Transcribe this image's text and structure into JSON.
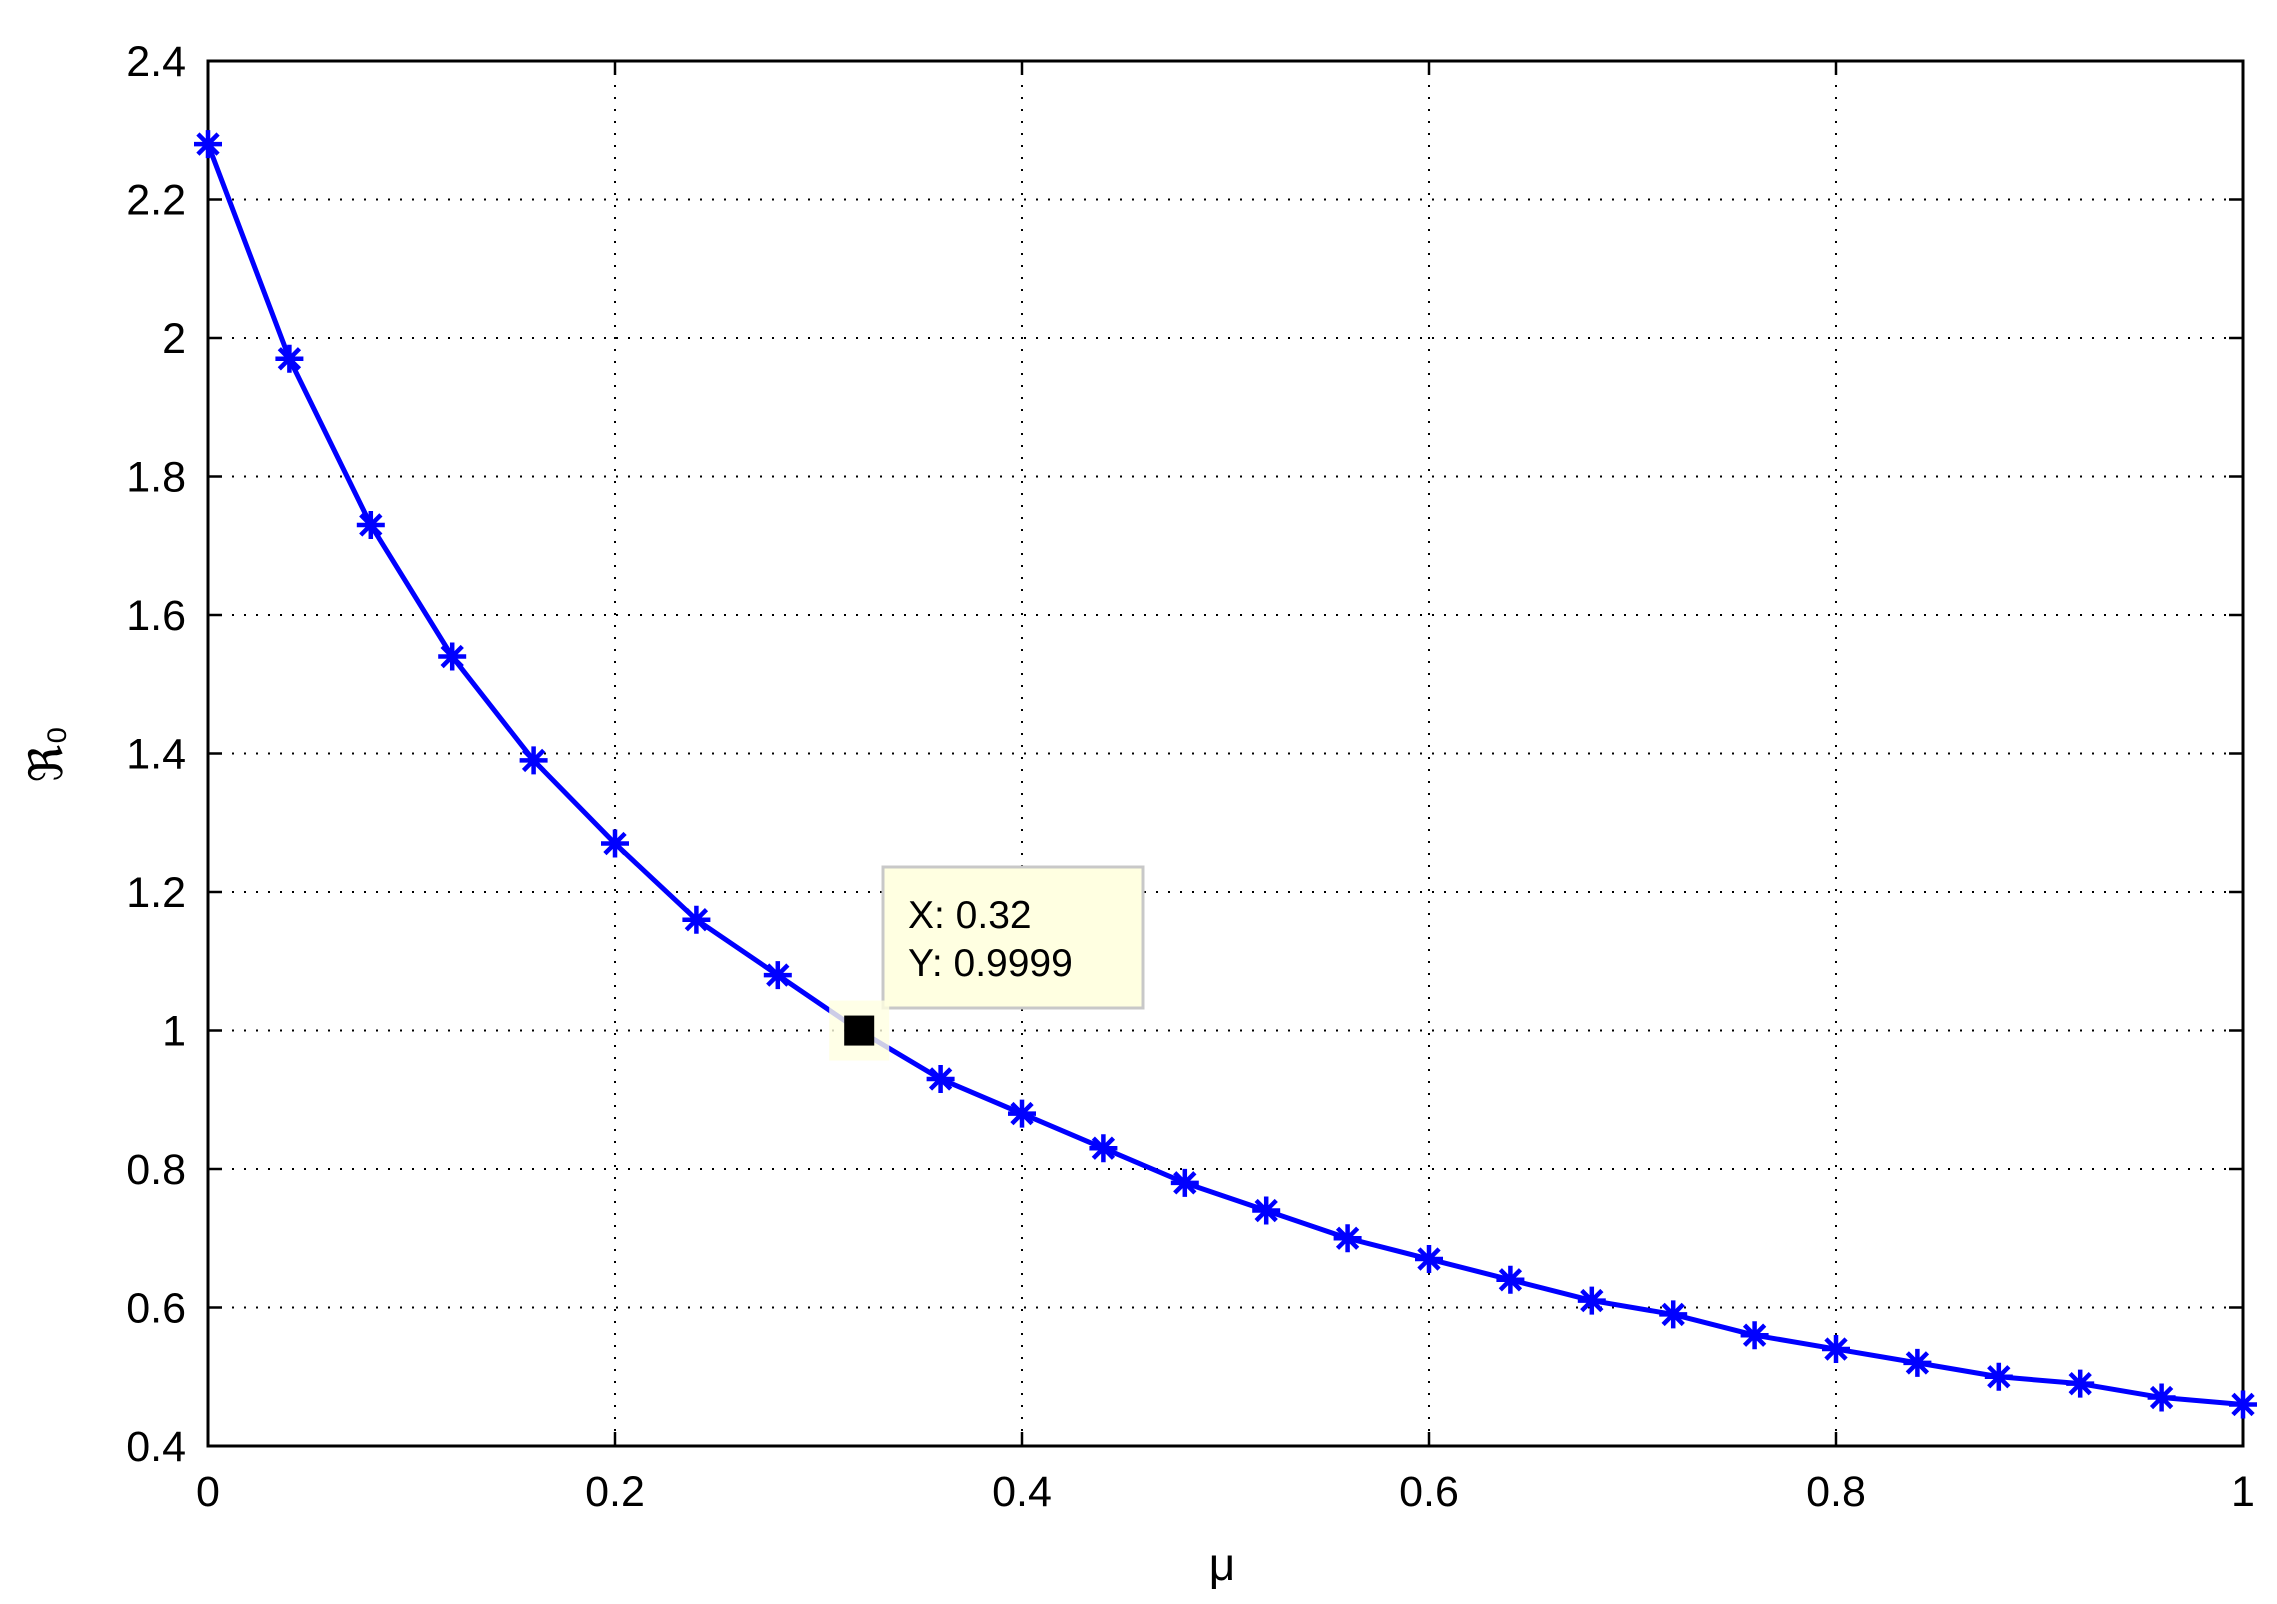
{
  "chart_data": {
    "type": "line",
    "xlabel": "μ",
    "ylabel": "ℜ₀",
    "x": [
      0,
      0.04,
      0.08,
      0.12,
      0.16,
      0.2,
      0.24,
      0.28,
      0.32,
      0.36,
      0.4,
      0.44,
      0.48,
      0.52,
      0.56,
      0.6,
      0.64,
      0.68,
      0.72,
      0.76,
      0.8,
      0.84,
      0.88,
      0.92,
      0.96,
      1
    ],
    "series": [
      {
        "color": "#0000ff",
        "marker": "asterisk",
        "values": [
          2.28,
          1.97,
          1.73,
          1.54,
          1.39,
          1.27,
          1.16,
          1.08,
          0.9999,
          0.93,
          0.88,
          0.83,
          0.78,
          0.74,
          0.7,
          0.67,
          0.64,
          0.61,
          0.59,
          0.56,
          0.54,
          0.52,
          0.5,
          0.49,
          0.47,
          0.46
        ]
      }
    ],
    "xlim": [
      0,
      1
    ],
    "ylim": [
      0.4,
      2.4
    ],
    "xticks": [
      0,
      0.2,
      0.4,
      0.6,
      0.8,
      1
    ],
    "yticks": [
      0.4,
      0.6,
      0.8,
      1,
      1.2,
      1.4,
      1.6,
      1.8,
      2,
      2.2,
      2.4
    ],
    "grid": true,
    "datatip": {
      "x": 0.32,
      "y": 0.9999,
      "x_label": "X: 0.32",
      "y_label": "Y: 0.9999"
    }
  }
}
